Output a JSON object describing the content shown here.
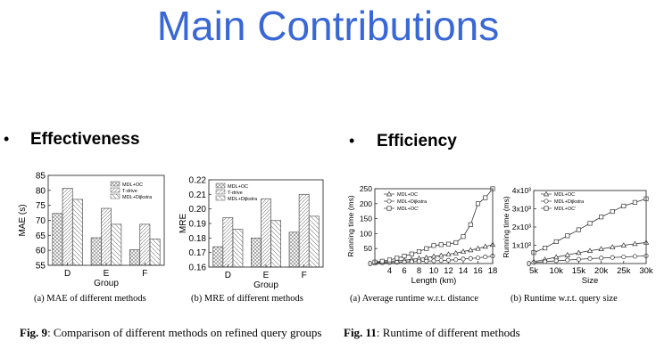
{
  "slide": {
    "title": "Main Contributions",
    "sections": [
      {
        "bullet": "•",
        "label": "Effectiveness"
      },
      {
        "bullet": "•",
        "label": "Efficiency"
      }
    ]
  },
  "figures": {
    "fig9": {
      "label": "Fig. 9",
      "text": ": Comparison of different methods on refined query groups"
    },
    "fig11": {
      "label": "Fig. 11",
      "text": ": Runtime of different methods"
    }
  },
  "chart_data": [
    {
      "id": "mae",
      "type": "bar",
      "caption": "(a) MAE of different methods",
      "xlabel": "Group",
      "ylabel": "MAE (s)",
      "categories": [
        "D",
        "E",
        "F"
      ],
      "ylim": [
        55,
        85
      ],
      "yticks": [
        55,
        60,
        65,
        70,
        75,
        80,
        85
      ],
      "legend_position": "top-right",
      "series": [
        {
          "name": "MDL+OC",
          "values": [
            72.3,
            64.2,
            60.2
          ]
        },
        {
          "name": "T-drive",
          "values": [
            80.7,
            74.0,
            68.7
          ]
        },
        {
          "name": "MDL+Dijkstra",
          "values": [
            77.0,
            68.7,
            63.8
          ]
        }
      ]
    },
    {
      "id": "mre",
      "type": "bar",
      "caption": "(b) MRE of different methods",
      "xlabel": "Group",
      "ylabel": "MRE",
      "categories": [
        "D",
        "E",
        "F"
      ],
      "ylim": [
        0.16,
        0.22
      ],
      "yticks": [
        0.16,
        0.17,
        0.18,
        0.19,
        0.2,
        0.21,
        0.22
      ],
      "legend_position": "top-left",
      "series": [
        {
          "name": "MDL+OC",
          "values": [
            0.174,
            0.18,
            0.184
          ]
        },
        {
          "name": "T-drive",
          "values": [
            0.194,
            0.207,
            0.21
          ]
        },
        {
          "name": "MDL+Dijkstra",
          "values": [
            0.186,
            0.192,
            0.195
          ]
        }
      ]
    },
    {
      "id": "runtime-distance",
      "type": "line",
      "caption": "(a) Average runtime w.r.t. distance",
      "xlabel": "Length (km)",
      "ylabel": "Running time (ms)",
      "xlim": [
        2,
        18
      ],
      "ylim": [
        0,
        250
      ],
      "xticks": [
        4,
        6,
        8,
        10,
        12,
        14,
        16,
        18
      ],
      "yticks": [
        0,
        50,
        100,
        150,
        200,
        250
      ],
      "legend_position": "top-left",
      "x": [
        2,
        3,
        4,
        5,
        6,
        7,
        8,
        9,
        10,
        11,
        12,
        13,
        14,
        15,
        16,
        17,
        18
      ],
      "series": [
        {
          "name": "MDL+OC",
          "marker": "triangle",
          "values": [
            3,
            5,
            7,
            9,
            11,
            14,
            17,
            20,
            24,
            27,
            31,
            35,
            40,
            45,
            50,
            57,
            63
          ]
        },
        {
          "name": "MDL+Dijkstra",
          "marker": "circle",
          "values": [
            1,
            2,
            3,
            4,
            5,
            6,
            7,
            8,
            9,
            10,
            11,
            13,
            15,
            17,
            19,
            22,
            25
          ]
        },
        {
          "name": "MDL+OC'",
          "marker": "square",
          "values": [
            5,
            8,
            12,
            18,
            25,
            32,
            40,
            50,
            60,
            63,
            65,
            70,
            90,
            130,
            200,
            220,
            250
          ]
        }
      ]
    },
    {
      "id": "runtime-size",
      "type": "line",
      "caption": "(b) Runtime w.r.t. query size",
      "xlabel": "Size",
      "ylabel": "Running time (ms)",
      "xlim": [
        5000,
        30000
      ],
      "ylim": [
        0,
        4000
      ],
      "x_tick_values": [
        5000,
        10000,
        15000,
        20000,
        25000,
        30000
      ],
      "x_tick_labels": [
        "5k",
        "10k",
        "15k",
        "20k",
        "25k",
        "30k"
      ],
      "y_tick_values": [
        0,
        1000,
        2000,
        3000,
        4000
      ],
      "y_tick_labels": [
        "0",
        "1x10³",
        "2x10³",
        "3x10³",
        "4x10³"
      ],
      "legend_position": "top-left",
      "x": [
        5000,
        7500,
        10000,
        12500,
        15000,
        17500,
        20000,
        22500,
        25000,
        27500,
        30000
      ],
      "series": [
        {
          "name": "MDL+OC",
          "marker": "triangle",
          "values": [
            100,
            220,
            350,
            470,
            590,
            700,
            800,
            900,
            1000,
            1080,
            1150
          ]
        },
        {
          "name": "MDL+Dijkstra",
          "marker": "circle",
          "values": [
            50,
            100,
            150,
            190,
            230,
            270,
            300,
            330,
            360,
            390,
            420
          ]
        },
        {
          "name": "MDL+OC'",
          "marker": "square",
          "values": [
            600,
            850,
            1200,
            1520,
            1850,
            2200,
            2550,
            2850,
            3150,
            3350,
            3550
          ]
        }
      ]
    }
  ]
}
